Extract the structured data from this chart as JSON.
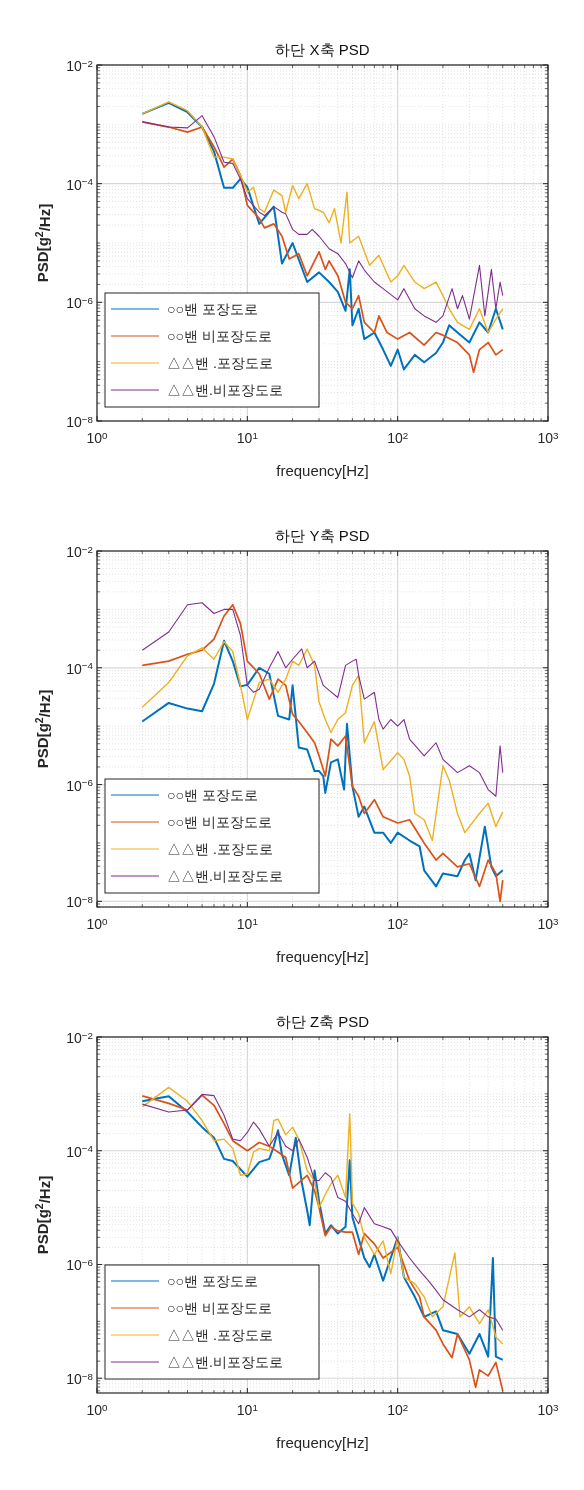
{
  "chart_data": [
    {
      "type": "line",
      "title": "하단 X축 PSD",
      "xlabel": "frequency[Hz]",
      "ylabel": "PSD[g$^{2}$/Hz]",
      "log": "xy",
      "xlim": [
        1,
        1000
      ],
      "ylim": [
        1e-08,
        0.01
      ],
      "xticks": [
        {
          "value": 1,
          "label": "10$^{0}$"
        },
        {
          "value": 10,
          "label": "10$^{1}$"
        },
        {
          "value": 100,
          "label": "10$^{2}$"
        },
        {
          "value": 1000,
          "label": "10$^{3}$"
        }
      ],
      "yticks": [
        {
          "value": 1e-08,
          "label": "10$^{−8}$"
        },
        {
          "value": 1e-06,
          "label": "10$^{−6}$"
        },
        {
          "value": 0.0001,
          "label": "10$^{−4}$"
        },
        {
          "value": 0.01,
          "label": "10$^{−2}$"
        }
      ],
      "grid": true,
      "legend": "bottom left",
      "series": [
        {
          "name": "○○밴 포장도로",
          "color": "#0072bd",
          "x": [
            2,
            3,
            4,
            5,
            6,
            7,
            8,
            9,
            10,
            12,
            15,
            17,
            20,
            25,
            30,
            35,
            40,
            45,
            48,
            50,
            55,
            60,
            70,
            80,
            90,
            100,
            110,
            130,
            150,
            180,
            200,
            220,
            250,
            300,
            350,
            400,
            450,
            500
          ],
          "values": [
            0.0015,
            0.0023,
            0.0016,
            0.0009,
            0.00035,
            8.5e-05,
            8.5e-05,
            0.00012,
            8.7e-05,
            2.1e-05,
            4.1e-05,
            4.5e-06,
            1e-05,
            2.2e-06,
            3.2e-06,
            2.2e-06,
            1.5e-06,
            7.2e-07,
            3.6e-06,
            4.1e-07,
            7.8e-07,
            2.4e-07,
            3.1e-07,
            1.6e-07,
            8.5e-08,
            1.6e-07,
            7.4e-08,
            1.3e-07,
            9.8e-08,
            1.4e-07,
            2.1e-07,
            4.1e-07,
            3.1e-07,
            2.1e-07,
            4.6e-07,
            3.1e-07,
            7.8e-07,
            3.5e-07
          ]
        },
        {
          "name": "○○밴 비포장도로",
          "color": "#d95319",
          "x": [
            2,
            3,
            4,
            5,
            6,
            7,
            8,
            9,
            10,
            12,
            13,
            15,
            17,
            19,
            22,
            25,
            30,
            33,
            35,
            40,
            45,
            50,
            55,
            60,
            70,
            75,
            85,
            100,
            120,
            150,
            180,
            200,
            250,
            300,
            320,
            350,
            400,
            450,
            500
          ],
          "values": [
            0.0011,
            0.0009,
            0.00074,
            0.0009,
            0.00042,
            0.00019,
            0.00026,
            0.00014,
            4.3e-05,
            2.6e-05,
            1.8e-05,
            2.1e-05,
            1.3e-05,
            5.4e-06,
            6.6e-06,
            2.8e-06,
            7.1e-06,
            3.6e-06,
            5e-06,
            2.8e-06,
            1e-06,
            7.8e-07,
            1.3e-06,
            4.6e-07,
            3.1e-07,
            5.9e-07,
            3.1e-07,
            2.4e-07,
            3.1e-07,
            1.9e-07,
            3.1e-07,
            2.8e-07,
            2.1e-07,
            1.3e-07,
            6.6e-08,
            1.6e-07,
            2.1e-07,
            1.3e-07,
            1.6e-07
          ]
        },
        {
          "name": "△△밴 .포장도로",
          "color": "#edb120",
          "x": [
            2,
            3,
            4,
            5,
            6,
            7,
            8,
            9,
            10,
            11,
            12,
            13,
            15,
            17,
            18,
            20,
            22,
            25,
            28,
            32,
            35,
            38,
            42,
            46,
            48,
            55,
            65,
            75,
            90,
            100,
            110,
            130,
            150,
            180,
            200,
            220,
            250,
            300,
            350,
            400,
            450,
            500
          ],
          "values": [
            0.0015,
            0.0024,
            0.0017,
            0.0009,
            0.00028,
            0.00028,
            0.00026,
            0.00014,
            7.2e-05,
            8.7e-05,
            3.8e-05,
            3.3e-05,
            7.8e-05,
            6.3e-05,
            3.3e-05,
            9.3e-05,
            5.6e-05,
            0.0001,
            3.8e-05,
            3.3e-05,
            2.2e-05,
            3.8e-05,
            1e-05,
            7.2e-05,
            1e-05,
            1.3e-05,
            4.2e-06,
            6.2e-06,
            2.2e-06,
            2.8e-06,
            4.2e-06,
            2.2e-06,
            1.7e-06,
            2.2e-06,
            1.3e-06,
            7.8e-07,
            4.6e-07,
            3.5e-07,
            7.8e-07,
            3.1e-07,
            5.2e-07,
            7.8e-07
          ]
        },
        {
          "name": "△△밴.비포장도로",
          "color": "#7e2f8e",
          "x": [
            2,
            3,
            4,
            5,
            6,
            7,
            8,
            9,
            10,
            12,
            13,
            15,
            17,
            18,
            20,
            22,
            25,
            27,
            30,
            35,
            40,
            45,
            50,
            55,
            60,
            70,
            80,
            100,
            110,
            130,
            150,
            180,
            200,
            230,
            250,
            270,
            300,
            350,
            380,
            420,
            450,
            480,
            500
          ],
          "values": [
            0.0011,
            0.0009,
            0.00087,
            0.0014,
            0.00062,
            0.00023,
            0.00022,
            0.00012,
            5.6e-05,
            3.3e-05,
            2.9e-05,
            4.1e-05,
            3.3e-05,
            3.1e-05,
            1.7e-05,
            1.4e-05,
            1.4e-05,
            1.7e-05,
            1.3e-05,
            8e-06,
            6.6e-06,
            4.5e-06,
            2.6e-06,
            5e-06,
            3.5e-06,
            2.2e-06,
            1.7e-06,
            1.1e-06,
            1.7e-06,
            7.8e-07,
            5.9e-07,
            4.6e-07,
            5.9e-07,
            1.7e-06,
            7.8e-07,
            1.3e-06,
            5.2e-07,
            4.2e-06,
            5.9e-07,
            3.6e-06,
            7.8e-07,
            2.2e-06,
            1.3e-06
          ]
        }
      ]
    },
    {
      "type": "line",
      "title": "하단 Y축 PSD",
      "xlabel": "frequency[Hz]",
      "ylabel": "PSD[g$^{2}$/Hz]",
      "log": "xy",
      "xlim": [
        1,
        1000
      ],
      "ylim": [
        8e-09,
        0.01
      ],
      "xticks": [
        {
          "value": 1,
          "label": "10$^{0}$"
        },
        {
          "value": 10,
          "label": "10$^{1}$"
        },
        {
          "value": 100,
          "label": "10$^{2}$"
        },
        {
          "value": 1000,
          "label": "10$^{3}$"
        }
      ],
      "yticks": [
        {
          "value": 1e-08,
          "label": "10$^{−8}$"
        },
        {
          "value": 1e-06,
          "label": "10$^{−6}$"
        },
        {
          "value": 0.0001,
          "label": "10$^{−4}$"
        },
        {
          "value": 0.01,
          "label": "10$^{−2}$"
        }
      ],
      "grid": true,
      "legend": "bottom left",
      "series": [
        {
          "name": "○○밴 포장도로",
          "color": "#0072bd",
          "x": [
            2,
            3,
            4,
            5,
            6,
            7,
            8,
            9,
            10,
            12,
            14,
            16,
            19,
            20,
            22,
            25,
            28,
            30,
            32,
            33,
            36,
            40,
            44,
            46,
            50,
            55,
            60,
            70,
            80,
            90,
            100,
            120,
            140,
            150,
            180,
            200,
            250,
            280,
            300,
            330,
            380,
            420,
            450,
            500
          ],
          "values": [
            1.2e-05,
            2.5e-05,
            2e-05,
            1.8e-05,
            5.3e-05,
            0.00029,
            0.00013,
            4.8e-05,
            5.1e-05,
            0.0001,
            7.9e-05,
            1.5e-05,
            1.3e-05,
            5e-05,
            4.3e-06,
            4e-06,
            1.7e-06,
            1.7e-06,
            1.4e-06,
            7.2e-07,
            2.4e-06,
            2.7e-06,
            8.2e-07,
            1.1e-05,
            9.3e-07,
            2.8e-07,
            4.2e-07,
            1.5e-07,
            1.5e-07,
            1e-07,
            1.5e-07,
            1.1e-07,
            8.7e-08,
            3.4e-08,
            1.8e-08,
            3e-08,
            2.7e-08,
            5.1e-08,
            6.6e-08,
            2.3e-08,
            1.9e-07,
            3.9e-08,
            2.7e-08,
            3.4e-08
          ]
        },
        {
          "name": "○○밴 비포장도로",
          "color": "#d95319",
          "x": [
            2,
            3,
            4,
            5,
            6,
            7,
            8,
            9,
            10,
            12,
            14,
            16,
            18,
            20,
            22,
            25,
            28,
            30,
            33,
            36,
            40,
            45,
            50,
            55,
            60,
            70,
            80,
            100,
            120,
            150,
            180,
            200,
            250,
            300,
            350,
            400,
            450,
            480,
            500
          ],
          "values": [
            0.00011,
            0.00013,
            0.00017,
            0.0002,
            0.00031,
            0.00077,
            0.0012,
            0.00057,
            0.00013,
            7.9e-05,
            2.9e-05,
            6.4e-05,
            5e-05,
            1.6e-05,
            1.2e-05,
            7.8e-06,
            5.2e-06,
            3.1e-06,
            1.4e-06,
            6e-06,
            4.6e-06,
            6.8e-06,
            9.3e-07,
            6.3e-07,
            3.2e-07,
            5.5e-07,
            2.8e-07,
            2.2e-07,
            2.5e-07,
            1e-07,
            5.1e-08,
            6.6e-08,
            3.9e-08,
            4.4e-08,
            1.8e-08,
            5.1e-08,
            3e-08,
            1e-08,
            2.3e-08
          ]
        },
        {
          "name": "△△밴 .포장도로",
          "color": "#edb120",
          "x": [
            2,
            3,
            4,
            5,
            6,
            7,
            8,
            9,
            10,
            12,
            14,
            16,
            18,
            20,
            22,
            25,
            28,
            30,
            33,
            36,
            40,
            45,
            50,
            55,
            60,
            70,
            80,
            100,
            110,
            120,
            130,
            150,
            170,
            200,
            220,
            250,
            280,
            300,
            350,
            400,
            450,
            500
          ],
          "values": [
            2.1e-05,
            5.6e-05,
            0.00016,
            0.00022,
            0.00014,
            0.00028,
            0.00019,
            5e-05,
            1.3e-05,
            5.6e-05,
            6.4e-05,
            3.8e-05,
            6.4e-05,
            0.00013,
            0.00011,
            0.00021,
            0.00011,
            2.6e-05,
            1.3e-05,
            7.8e-06,
            1.3e-05,
            1.7e-05,
            5e-05,
            7.4e-05,
            5.2e-06,
            1.2e-05,
            1.8e-06,
            3.5e-06,
            2.7e-06,
            1.4e-06,
            3.2e-07,
            2.5e-07,
            1.1e-07,
            2.1e-06,
            1.2e-06,
            3.2e-07,
            1.5e-07,
            1.9e-07,
            3.2e-07,
            4.8e-07,
            1.9e-07,
            3.4e-07
          ]
        },
        {
          "name": "△△밴.비포장도로",
          "color": "#7e2f8e",
          "x": [
            2,
            3,
            4,
            5,
            6,
            7,
            8,
            9,
            10,
            11,
            12,
            14,
            16,
            18,
            20,
            23,
            25,
            28,
            32,
            35,
            40,
            45,
            50,
            53,
            55,
            60,
            70,
            75,
            80,
            90,
            100,
            110,
            120,
            150,
            180,
            200,
            250,
            300,
            350,
            400,
            450,
            480,
            500
          ],
          "values": [
            0.0002,
            0.00041,
            0.0012,
            0.0013,
            0.00085,
            0.001,
            0.001,
            0.00036,
            5e-05,
            3.8e-05,
            4.3e-05,
            0.0001,
            0.00019,
            0.0001,
            0.00014,
            0.00021,
            0.0001,
            0.00013,
            5e-05,
            4.1e-05,
            3.1e-05,
            0.00011,
            0.00013,
            0.00014,
            7.4e-05,
            2.9e-05,
            3.8e-05,
            1.3e-05,
            8.9e-06,
            1.3e-05,
            1e-05,
            1.3e-05,
            6e-06,
            3.1e-06,
            5.2e-06,
            2.7e-06,
            1.6e-06,
            2.1e-06,
            1.6e-06,
            8.2e-07,
            6.3e-07,
            4.6e-06,
            1.6e-06
          ]
        }
      ]
    },
    {
      "type": "line",
      "title": "하단 Z축 PSD",
      "xlabel": "frequency[Hz]",
      "ylabel": "PSD[g$^{2}$/Hz]",
      "log": "xy",
      "xlim": [
        1,
        1000
      ],
      "ylim": [
        5.5e-09,
        0.01
      ],
      "xticks": [
        {
          "value": 1,
          "label": "10$^{0}$"
        },
        {
          "value": 10,
          "label": "10$^{1}$"
        },
        {
          "value": 100,
          "label": "10$^{2}$"
        },
        {
          "value": 1000,
          "label": "10$^{3}$"
        }
      ],
      "yticks": [
        {
          "value": 1e-08,
          "label": "10$^{−8}$"
        },
        {
          "value": 1e-06,
          "label": "10$^{−6}$"
        },
        {
          "value": 0.0001,
          "label": "10$^{−4}$"
        },
        {
          "value": 0.01,
          "label": "10$^{−2}$"
        }
      ],
      "grid": true,
      "legend": "bottom left",
      "series": [
        {
          "name": "○○밴 포장도로",
          "color": "#0072bd",
          "x": [
            2,
            3,
            4,
            5,
            6,
            7,
            8,
            10,
            12,
            14,
            15,
            16,
            17,
            19,
            21,
            23,
            25,
            26,
            28,
            30,
            33,
            36,
            40,
            45,
            48,
            50,
            60,
            65,
            70,
            80,
            100,
            110,
            130,
            150,
            180,
            200,
            250,
            300,
            350,
            400,
            430,
            450,
            500
          ],
          "values": [
            0.00074,
            0.00091,
            0.00048,
            0.00026,
            0.00017,
            7.2e-05,
            6.6e-05,
            3.5e-05,
            6.3e-05,
            7.2e-05,
            0.00012,
            0.00023,
            8.5e-05,
            3.7e-05,
            0.00017,
            2.8e-05,
            8.9e-06,
            4.9e-06,
            4.5e-05,
            1.3e-05,
            3.5e-06,
            4.9e-06,
            3.5e-06,
            4.6e-06,
            6.8e-05,
            6.8e-06,
            1.3e-06,
            9e-07,
            1.5e-06,
            5.2e-07,
            3e-06,
            6e-07,
            2.7e-07,
            1.2e-07,
            1.5e-07,
            7e-08,
            6e-08,
            2.7e-08,
            6e-08,
            2.4e-08,
            1.3e-06,
            2.4e-08,
            2.1e-08
          ]
        },
        {
          "name": "○○밴 비포장도로",
          "color": "#d95319",
          "x": [
            2,
            3,
            4,
            5,
            6,
            7,
            8,
            10,
            12,
            14,
            16,
            18,
            20,
            25,
            28,
            30,
            33,
            36,
            40,
            45,
            50,
            55,
            60,
            70,
            80,
            100,
            120,
            140,
            150,
            180,
            200,
            230,
            250,
            300,
            330,
            350,
            400,
            450,
            500
          ],
          "values": [
            0.00092,
            0.00068,
            0.00052,
            0.00095,
            0.00063,
            0.0003,
            0.00015,
            0.0001,
            0.00014,
            0.00012,
            9.5e-05,
            7.6e-05,
            2.2e-05,
            3.7e-05,
            2e-05,
            1e-05,
            3.2e-06,
            4.6e-06,
            3.9e-06,
            3.7e-06,
            3.7e-06,
            1.5e-06,
            3.5e-06,
            2.3e-06,
            1.3e-06,
            2e-06,
            5.2e-07,
            2.7e-07,
            1.2e-07,
            7e-08,
            4e-08,
            2.3e-08,
            6e-08,
            2.1e-08,
            6.9e-09,
            1.4e-08,
            1.1e-08,
            1.9e-08,
            6e-09
          ]
        },
        {
          "name": "△△밴 .포장도로",
          "color": "#edb120",
          "x": [
            2,
            3,
            4,
            5,
            6,
            7,
            8,
            9,
            10,
            11,
            12,
            14,
            15,
            16,
            18,
            20,
            22,
            25,
            28,
            30,
            33,
            36,
            40,
            45,
            48,
            50,
            55,
            60,
            70,
            80,
            90,
            100,
            110,
            130,
            150,
            170,
            200,
            240,
            260,
            300,
            350,
            400,
            450,
            500
          ],
          "values": [
            0.00059,
            0.0013,
            0.00074,
            0.00034,
            0.00015,
            0.00016,
            0.00011,
            3.7e-05,
            3.9e-05,
            9.5e-05,
            0.00011,
            0.0001,
            0.00034,
            0.00036,
            0.00019,
            0.00026,
            0.00016,
            4.5e-05,
            3e-05,
            1e-05,
            1.7e-05,
            2.6e-05,
            3.7e-05,
            1.5e-05,
            0.00045,
            1.2e-05,
            7.8e-06,
            3e-06,
            1.5e-06,
            2.6e-06,
            6.9e-07,
            3e-06,
            6e-07,
            4.6e-07,
            2.7e-07,
            1.2e-07,
            1.8e-07,
            1.6e-06,
            1.2e-07,
            1.8e-07,
            9.1e-08,
            1.6e-07,
            5.3e-08,
            4e-08
          ]
        },
        {
          "name": "△△밴.비포장도로",
          "color": "#7e2f8e",
          "x": [
            2,
            3,
            4,
            5,
            6,
            7,
            8,
            9,
            10,
            11,
            12,
            14,
            16,
            18,
            20,
            22,
            25,
            28,
            30,
            33,
            36,
            40,
            45,
            50,
            55,
            60,
            70,
            80,
            90,
            100,
            120,
            140,
            160,
            180,
            200,
            250,
            300,
            350,
            400,
            450,
            500
          ],
          "values": [
            0.00066,
            0.00048,
            0.00052,
            0.00098,
            0.00093,
            0.00042,
            0.00016,
            0.00015,
            0.00021,
            0.00032,
            0.00024,
            0.00012,
            0.00021,
            0.00012,
            0.0001,
            0.00016,
            7.7e-05,
            3e-05,
            3e-05,
            4.1e-05,
            3.4e-05,
            1.5e-05,
            1.3e-05,
            7.8e-06,
            5.2e-06,
            1e-05,
            5.2e-06,
            4.6e-06,
            4.1e-06,
            2.6e-06,
            1.3e-06,
            7.8e-07,
            5.2e-07,
            3.5e-07,
            2.4e-07,
            1.6e-07,
            1.2e-07,
            1.6e-07,
            1.2e-07,
            1.1e-07,
            7e-08
          ]
        }
      ]
    }
  ]
}
